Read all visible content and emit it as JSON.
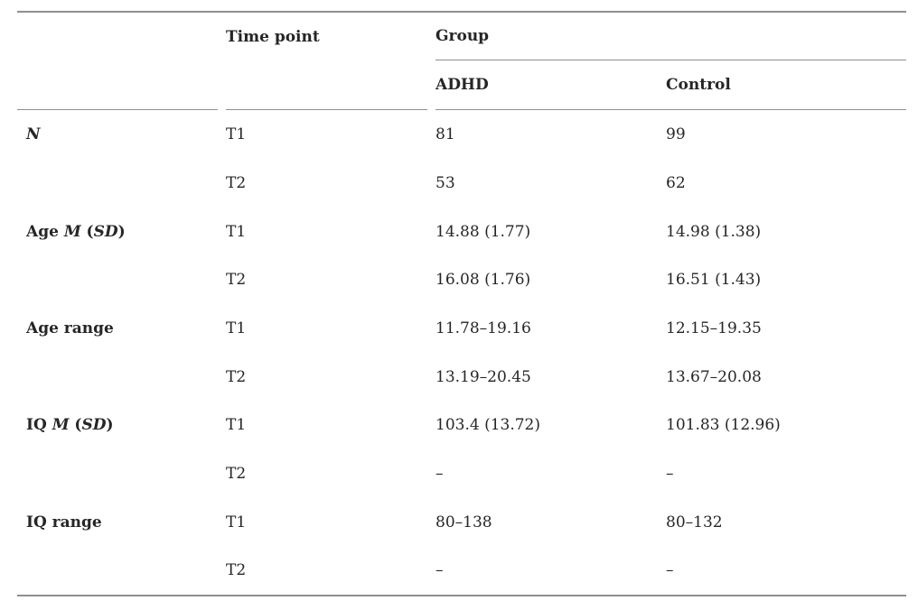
{
  "table": {
    "header": {
      "time_point": "Time point",
      "group": "Group",
      "group_columns": [
        "ADHD",
        "Control"
      ]
    },
    "rows": [
      {
        "label": [
          {
            "text": "N",
            "italic": true
          }
        ],
        "time": "T1",
        "adhd": "81",
        "control": "99"
      },
      {
        "label": [],
        "time": "T2",
        "adhd": "53",
        "control": "62"
      },
      {
        "label": [
          {
            "text": "Age ",
            "italic": false
          },
          {
            "text": "M",
            "italic": true
          },
          {
            "text": " (",
            "italic": false
          },
          {
            "text": "SD",
            "italic": true
          },
          {
            "text": ")",
            "italic": false
          }
        ],
        "time": "T1",
        "adhd": "14.88 (1.77)",
        "control": "14.98 (1.38)"
      },
      {
        "label": [],
        "time": "T2",
        "adhd": "16.08 (1.76)",
        "control": "16.51 (1.43)"
      },
      {
        "label": [
          {
            "text": "Age range",
            "italic": false
          }
        ],
        "time": "T1",
        "adhd": "11.78–19.16",
        "control": "12.15–19.35"
      },
      {
        "label": [],
        "time": "T2",
        "adhd": "13.19–20.45",
        "control": "13.67–20.08"
      },
      {
        "label": [
          {
            "text": "IQ ",
            "italic": false
          },
          {
            "text": "M",
            "italic": true
          },
          {
            "text": " (",
            "italic": false
          },
          {
            "text": "SD",
            "italic": true
          },
          {
            "text": ")",
            "italic": false
          }
        ],
        "time": "T1",
        "adhd": "103.4 (13.72)",
        "control": "101.83 (12.96)"
      },
      {
        "label": [],
        "time": "T2",
        "adhd": "–",
        "control": "–"
      },
      {
        "label": [
          {
            "text": "IQ range",
            "italic": false
          }
        ],
        "time": "T1",
        "adhd": "80–138",
        "control": "80–132"
      },
      {
        "label": [],
        "time": "T2",
        "adhd": "–",
        "control": "–"
      }
    ]
  }
}
